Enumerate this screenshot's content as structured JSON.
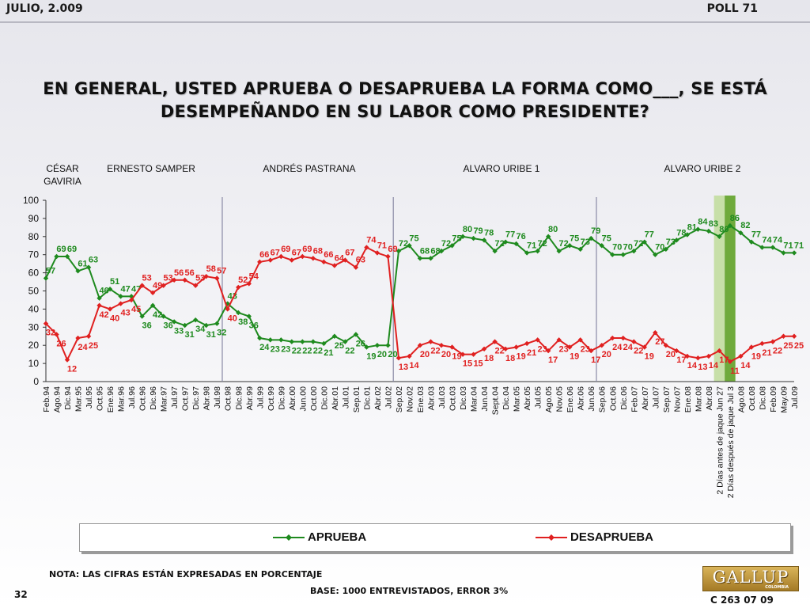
{
  "header": {
    "date": "JULIO, 2.009",
    "poll": "POLL 71"
  },
  "title_lines": [
    "EN GENERAL, USTED APRUEBA O DESAPRUEBA LA FORMA COMO___, SE ESTÁ",
    "DESEMPEÑANDO EN SU LABOR COMO PRESIDENTE?"
  ],
  "chart_data": {
    "type": "line",
    "title": "EN GENERAL, USTED APRUEBA O DESAPRUEBA LA FORMA COMO___, SE ESTÁ DESEMPEÑANDO EN SU LABOR COMO PRESIDENTE?",
    "ylim": [
      0,
      100
    ],
    "yticks": [
      0,
      10,
      20,
      30,
      40,
      50,
      60,
      70,
      80,
      90,
      100
    ],
    "x": [
      "Feb.94",
      "Ago.94",
      "Dic.94",
      "Mar.95",
      "Jul.95",
      "Oct.95",
      "Ene.96",
      "Mar.96",
      "Jul.96",
      "Oct.96",
      "Dic.96",
      "Mar.97",
      "Jul.97",
      "Oct.97",
      "Dic.97",
      "Abr.98",
      "Jul.98",
      "Oct.98",
      "Dic.98",
      "Abr.99",
      "Jul.99",
      "Oct.99",
      "Dic.99",
      "Abr.00",
      "Jun.00",
      "Oct.00",
      "Dic.00",
      "Abr.01",
      "Jul.01",
      "Sep.01",
      "Dic.01",
      "Abr.02",
      "Jul.02",
      "Sep.02",
      "Nov.02",
      "Ene.03",
      "Abr.03",
      "Jul.03",
      "Oct.03",
      "Dic.03",
      "Mar.04",
      "Jun.04",
      "Sept.04",
      "Dic.04",
      "Mar.05",
      "Abr.05",
      "Jul.05",
      "Ago.05",
      "Nov.05",
      "Ene.06",
      "Abr.06",
      "Jun.06",
      "Sep.06",
      "Oct.06",
      "Dic.06",
      "Feb.07",
      "Abr.07",
      "Jul.07",
      "Sep.07",
      "Nov.07",
      "Ene.08",
      "Mar.08",
      "Abr.08",
      "2 Días antes de jaque Jun 27",
      "2 Días después de jaque Jul 3",
      "Ago.08",
      "Oct.08",
      "Dic.08",
      "Feb.09",
      "May.09",
      "Jul.09"
    ],
    "series": [
      {
        "name": "APRUEBA",
        "color": "#1e8a1e",
        "values": [
          57,
          69,
          69,
          61,
          63,
          46,
          51,
          47,
          47,
          36,
          42,
          36,
          33,
          31,
          34,
          31,
          32,
          43,
          38,
          36,
          24,
          23,
          23,
          22,
          22,
          22,
          21,
          25,
          22,
          26,
          19,
          20,
          20,
          72,
          75,
          68,
          68,
          72,
          75,
          80,
          79,
          78,
          72,
          77,
          76,
          71,
          72,
          80,
          72,
          75,
          73,
          79,
          75,
          70,
          70,
          72,
          77,
          70,
          73,
          78,
          81,
          84,
          83,
          80,
          86,
          82,
          77,
          74,
          74,
          71,
          71
        ]
      },
      {
        "name": "DESAPRUEBA",
        "color": "#e02020",
        "values": [
          32,
          26,
          12,
          24,
          25,
          42,
          40,
          43,
          45,
          53,
          49,
          53,
          56,
          56,
          53,
          58,
          57,
          40,
          52,
          54,
          66,
          67,
          69,
          67,
          69,
          68,
          66,
          64,
          67,
          63,
          74,
          71,
          69,
          13,
          14,
          20,
          22,
          20,
          19,
          15,
          15,
          18,
          22,
          18,
          19,
          21,
          23,
          17,
          23,
          19,
          23,
          17,
          20,
          24,
          24,
          22,
          19,
          27,
          20,
          17,
          14,
          13,
          14,
          17,
          11,
          14,
          19,
          21,
          22,
          25,
          25
        ]
      }
    ],
    "eras": [
      {
        "label": "CÉSAR GAVIRIA"
      },
      {
        "label": "ERNESTO SAMPER"
      },
      {
        "label": "ANDRÉS  PASTRANA"
      },
      {
        "label": "ALVARO URIBE 1"
      },
      {
        "label": "ALVARO URIBE 2"
      }
    ],
    "legend": "bottom"
  },
  "footer": {
    "note": "NOTA: LAS CIFRAS ESTÁN EXPRESADAS EN PORCENTAJE",
    "base": "BASE: 1000 ENTREVISTADOS, ERROR 3%",
    "page": "32",
    "logo": "GALLUP",
    "logo_sub": "COLOMBIA",
    "code": "C 263 07 09"
  },
  "colors": {
    "approve": "#1e8a1e",
    "disapprove": "#e02020",
    "highlight_light": "#c7dfa8",
    "highlight_dark": "#6faa3c"
  }
}
